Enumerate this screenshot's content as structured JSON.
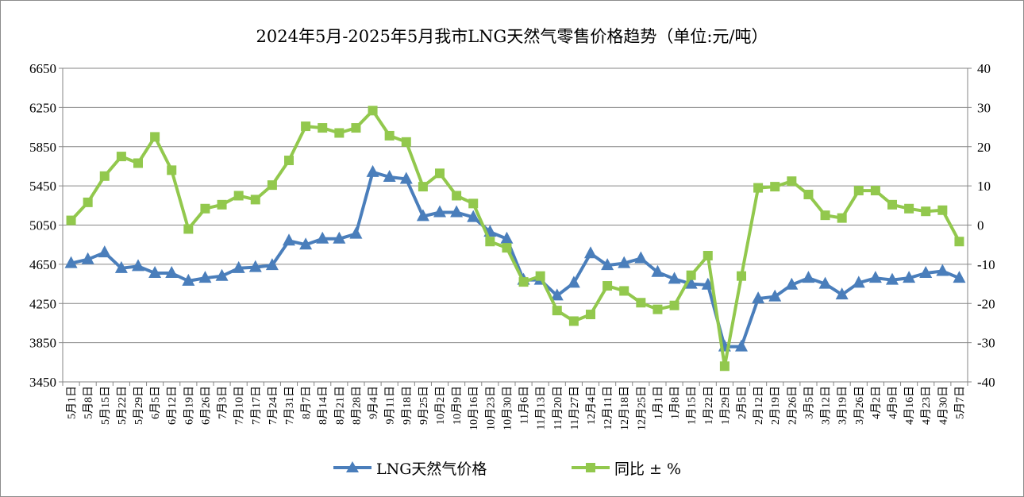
{
  "chart_data": {
    "type": "line",
    "title": "2024年5月-2025年5月我市LNG天然气零售价格趋势（单位:元/吨）",
    "categories": [
      "5月1日",
      "5月8日",
      "5月15日",
      "5月22日",
      "5月29日",
      "6月5日",
      "6月12日",
      "6月19日",
      "6月26日",
      "7月3日",
      "7月10日",
      "7月17日",
      "7月24日",
      "7月31日",
      "8月7日",
      "8月14日",
      "8月21日",
      "8月28日",
      "9月4日",
      "9月11日",
      "9月18日",
      "9月25日",
      "10月2日",
      "10月9日",
      "10月16日",
      "10月23日",
      "10月30日",
      "11月6日",
      "11月13日",
      "11月20日",
      "11月27日",
      "12月4日",
      "12月11日",
      "12月18日",
      "12月25日",
      "1月1日",
      "1月8日",
      "1月15日",
      "1月22日",
      "1月29日",
      "2月5日",
      "2月12日",
      "2月19日",
      "2月26日",
      "3月5日",
      "3月12日",
      "3月19日",
      "3月26日",
      "4月2日",
      "4月9日",
      "4月16日",
      "4月23日",
      "4月30日",
      "5月7日"
    ],
    "y_left": {
      "min": 3450,
      "max": 6650,
      "ticks": [
        "6650",
        "6250",
        "5850",
        "5450",
        "5050",
        "4650",
        "4250",
        "3850",
        "3450"
      ]
    },
    "y_right": {
      "min": -40,
      "max": 40,
      "ticks": [
        "40",
        "30",
        "20",
        "10",
        "0",
        "-10",
        "-20",
        "-30",
        "-40"
      ]
    },
    "grid": "horizontal",
    "legend_position": "bottom",
    "series": [
      {
        "name": "LNG天然气价格",
        "axis": "left",
        "color": "#4a7ebb",
        "marker": "triangle",
        "values": [
          4660,
          4700,
          4770,
          4610,
          4630,
          4560,
          4560,
          4480,
          4510,
          4530,
          4610,
          4620,
          4640,
          4890,
          4850,
          4910,
          4910,
          4960,
          5590,
          5540,
          5520,
          5140,
          5180,
          5180,
          5130,
          4980,
          4910,
          4490,
          4490,
          4330,
          4460,
          4760,
          4640,
          4660,
          4710,
          4570,
          4500,
          4450,
          4440,
          3810,
          3810,
          4300,
          4320,
          4440,
          4510,
          4450,
          4340,
          4460,
          4510,
          4490,
          4510,
          4560,
          4580,
          4510
        ]
      },
      {
        "name": "同比 ± %",
        "axis": "right",
        "color": "#92c84d",
        "marker": "square",
        "values": [
          1.2,
          5.8,
          12.5,
          17.5,
          15.8,
          22.5,
          14.0,
          -1.0,
          4.2,
          5.2,
          7.5,
          6.5,
          10.2,
          16.5,
          25.2,
          24.8,
          23.5,
          24.8,
          29.2,
          22.8,
          21.2,
          9.8,
          13.2,
          7.5,
          5.5,
          -4.2,
          -5.8,
          -14.5,
          -13.0,
          -21.8,
          -24.5,
          -22.8,
          -15.5,
          -16.8,
          -19.8,
          -21.5,
          -20.5,
          -12.8,
          -7.8,
          -36.0,
          -13.0,
          9.5,
          9.8,
          11.2,
          7.8,
          2.5,
          1.8,
          8.8,
          8.8,
          5.2,
          4.2,
          3.5,
          3.8,
          -4.2
        ]
      }
    ]
  }
}
